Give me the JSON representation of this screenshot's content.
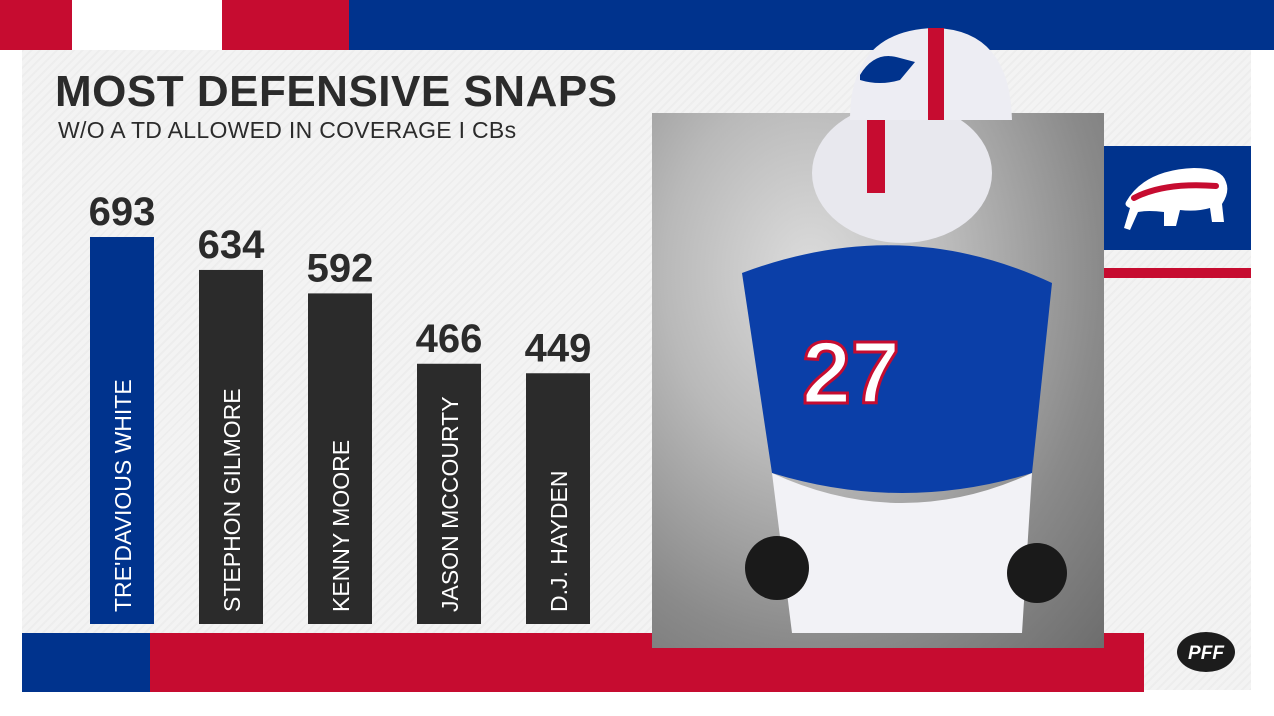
{
  "colors": {
    "blue": "#00338d",
    "red": "#c60c30",
    "bar_highlight": "#00338d",
    "bar_default": "#2b2b2b",
    "title_text": "#2b2b2b",
    "label_text": "#ffffff"
  },
  "header": {
    "title": "MOST DEFENSIVE SNAPS",
    "subtitle": "W/O A TD ALLOWED IN COVERAGE I CBs"
  },
  "chart_data": {
    "type": "bar",
    "orientation": "vertical",
    "title": "MOST DEFENSIVE SNAPS",
    "subtitle": "W/O A TD ALLOWED IN COVERAGE I CBs",
    "categories": [
      "TRE'DAVIOUS WHITE",
      "STEPHON GILMORE",
      "KENNY MOORE",
      "JASON MCCOURTY",
      "D.J. HAYDEN"
    ],
    "values": [
      693,
      634,
      592,
      466,
      449
    ],
    "highlight_index": 0,
    "data_labels": [
      "693",
      "634",
      "592",
      "466",
      "449"
    ],
    "grid": false,
    "legend": "none"
  },
  "branding": {
    "team_logo_icon": "buffalo-logo-icon",
    "footer_logo_icon": "pff-logo-icon",
    "footer_logo_text": "PFF"
  },
  "photo": {
    "icon": "player-photo"
  }
}
